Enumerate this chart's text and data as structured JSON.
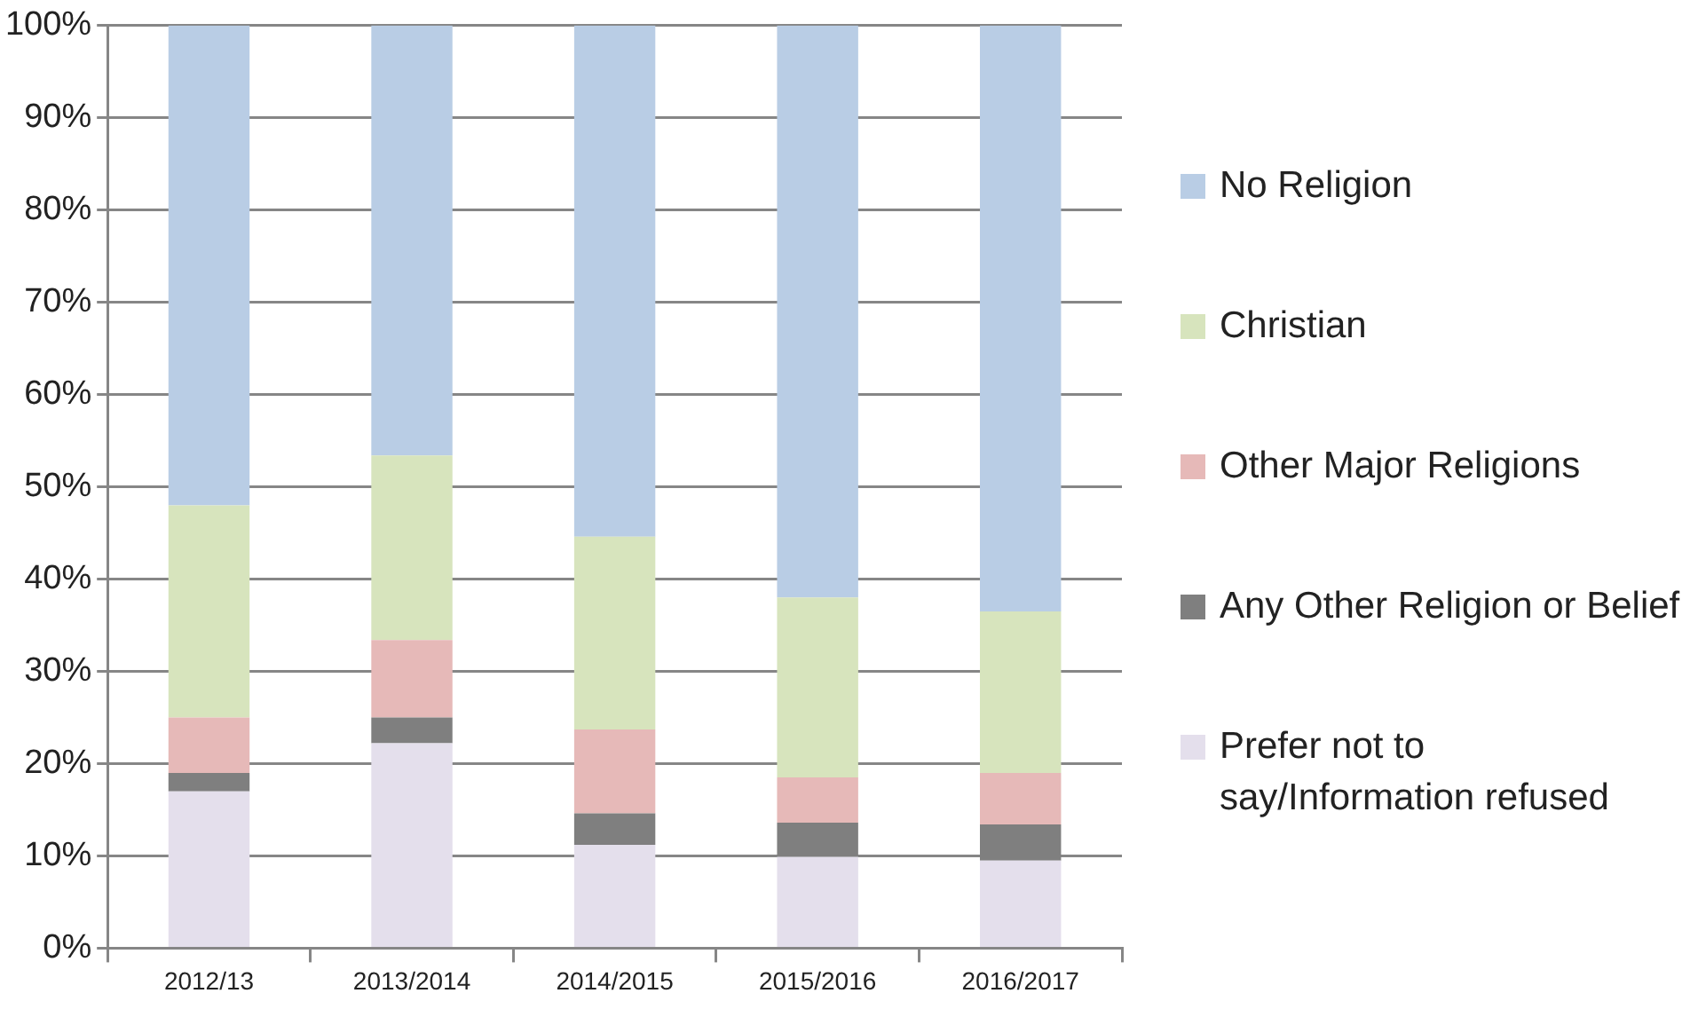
{
  "chart_data": {
    "type": "bar",
    "stacked": true,
    "categories": [
      "2012/13",
      "2013/2014",
      "2014/2015",
      "2015/2016",
      "2016/2017"
    ],
    "series": [
      {
        "name": "Prefer not to say/Information refused",
        "color": "#e4dfec",
        "values": [
          17,
          22.2,
          11.2,
          9.9,
          9.5
        ]
      },
      {
        "name": "Any Other Religion or Belief",
        "color": "#7f7f7f",
        "values": [
          2,
          2.8,
          3.4,
          3.7,
          3.9
        ]
      },
      {
        "name": "Other Major Religions",
        "color": "#e6b9b8",
        "values": [
          6,
          8.4,
          9.1,
          4.9,
          5.6
        ]
      },
      {
        "name": "Christian",
        "color": "#d7e4bd",
        "values": [
          23,
          20,
          20.9,
          19.5,
          17.5
        ]
      },
      {
        "name": "No Religion",
        "color": "#b9cde5",
        "values": [
          52,
          46.6,
          55.4,
          62,
          63.5
        ]
      }
    ],
    "ylim": [
      0,
      100
    ],
    "yticks": [
      {
        "value": 0,
        "label": "0%"
      },
      {
        "value": 10,
        "label": "10%"
      },
      {
        "value": 20,
        "label": "20%"
      },
      {
        "value": 30,
        "label": "30%"
      },
      {
        "value": 40,
        "label": "40%"
      },
      {
        "value": 50,
        "label": "50%"
      },
      {
        "value": 60,
        "label": "60%"
      },
      {
        "value": 70,
        "label": "70%"
      },
      {
        "value": 80,
        "label": "80%"
      },
      {
        "value": 90,
        "label": "90%"
      },
      {
        "value": 100,
        "label": "100%"
      }
    ],
    "grid": "y",
    "legend": "right"
  }
}
